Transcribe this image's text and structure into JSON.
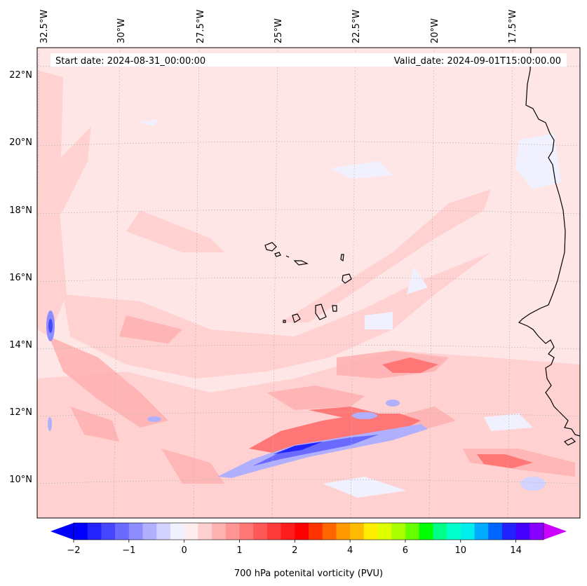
{
  "header": {
    "start_date": "Start date: 2024-08-31_00:00:00",
    "valid_date": "Valid_date: 2024-09-01T15:00:00.00"
  },
  "axes": {
    "lon_labels": [
      "32.5°W",
      "30°W",
      "27.5°W",
      "25°W",
      "22.5°W",
      "20°W",
      "17.5°W"
    ],
    "lat_labels": [
      "22°N",
      "20°N",
      "18°N",
      "16°N",
      "14°N",
      "12°N",
      "10°N"
    ]
  },
  "colorbar": {
    "label": "700 hPa potenital vorticity (PVU)",
    "tick_labels": [
      "−2",
      "−1",
      "0",
      "1",
      "2",
      "4",
      "6",
      "10",
      "14"
    ],
    "colors": [
      "#0000ff",
      "#2323ff",
      "#4646ff",
      "#6a6aff",
      "#8d8dff",
      "#b0b0ff",
      "#d3d3ff",
      "#f0f0ff",
      "#ffecec",
      "#ffd0d0",
      "#ffb2b2",
      "#ff9494",
      "#ff7676",
      "#ff5858",
      "#ff3a3a",
      "#ff1c1c",
      "#ff0000",
      "#ff3300",
      "#ff6600",
      "#ff9900",
      "#ffbb00",
      "#ffee00",
      "#ddff00",
      "#aaff00",
      "#66ff00",
      "#00ff00",
      "#00ff88",
      "#00ffcc",
      "#00eeee",
      "#00aaff",
      "#0066ff",
      "#2222ff",
      "#4400ff",
      "#8800ff"
    ],
    "extend_min_color": "#0000ff",
    "extend_max_color": "#cc00ff"
  },
  "map": {
    "background_color": "#ffe6e6",
    "region": "Cape Verde / West African coast"
  }
}
